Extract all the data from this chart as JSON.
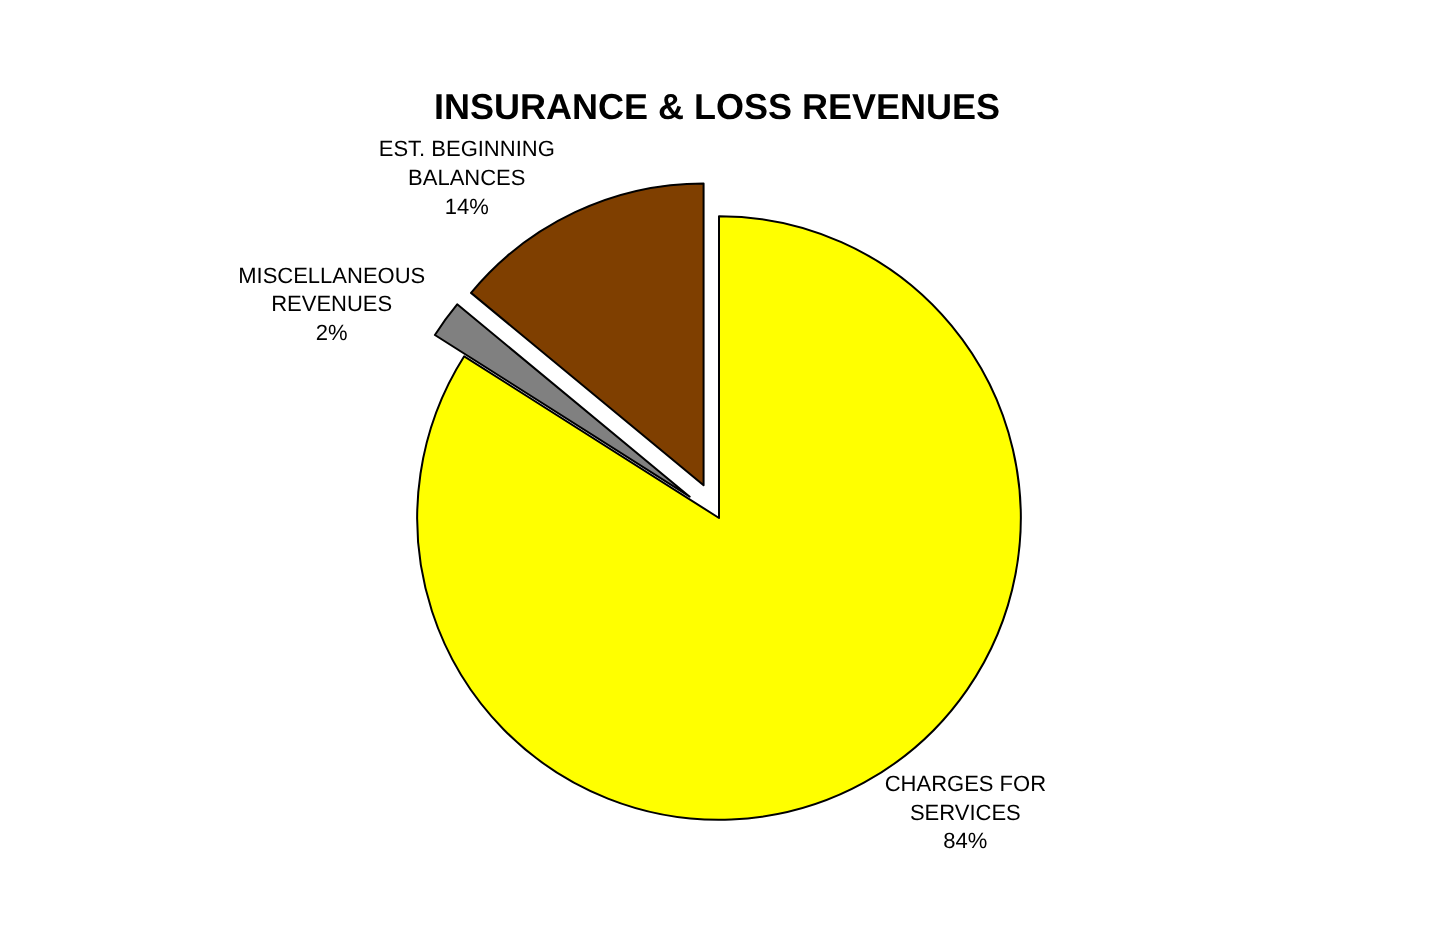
{
  "chart_data": {
    "type": "pie",
    "title": "INSURANCE & LOSS REVENUES",
    "categories": [
      "CHARGES FOR SERVICES",
      "MISCELLANEOUS REVENUES",
      "EST. BEGINNING BALANCES"
    ],
    "values": [
      84,
      2,
      14
    ],
    "value_labels": [
      "84%",
      "2%",
      "14%"
    ],
    "colors": [
      "#ffff00",
      "#808080",
      "#7f3f00"
    ],
    "legend": false
  }
}
